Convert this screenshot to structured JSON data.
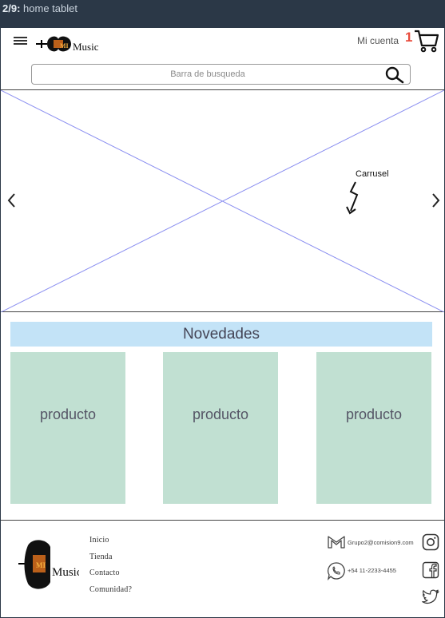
{
  "topbar": {
    "index": "2/9:",
    "title": "home tablet"
  },
  "header": {
    "logo_text": "Music",
    "account_label": "Mi cuenta",
    "cart_count": "1",
    "search_placeholder": "Barra de busqueda"
  },
  "carousel": {
    "prev": "‹",
    "next": "›",
    "annotation": "Carrusel"
  },
  "novedades": {
    "title": "Novedades",
    "products": [
      "producto",
      "producto",
      "producto"
    ]
  },
  "footer": {
    "links": [
      "Inicio",
      "Tienda",
      "Contacto",
      "Comunidad?"
    ],
    "email": "Grupo2@comision9.com",
    "phone": "+54 11-2233-4455"
  },
  "colors": {
    "cart_count": "#e84c3d",
    "novedades_bg": "#c3e3f7",
    "product_bg": "#c1e0d2"
  },
  "icons": [
    "hamburger-icon",
    "cart-icon",
    "search-icon",
    "gmail-icon",
    "whatsapp-icon",
    "instagram-icon",
    "facebook-icon",
    "twitter-icon"
  ]
}
